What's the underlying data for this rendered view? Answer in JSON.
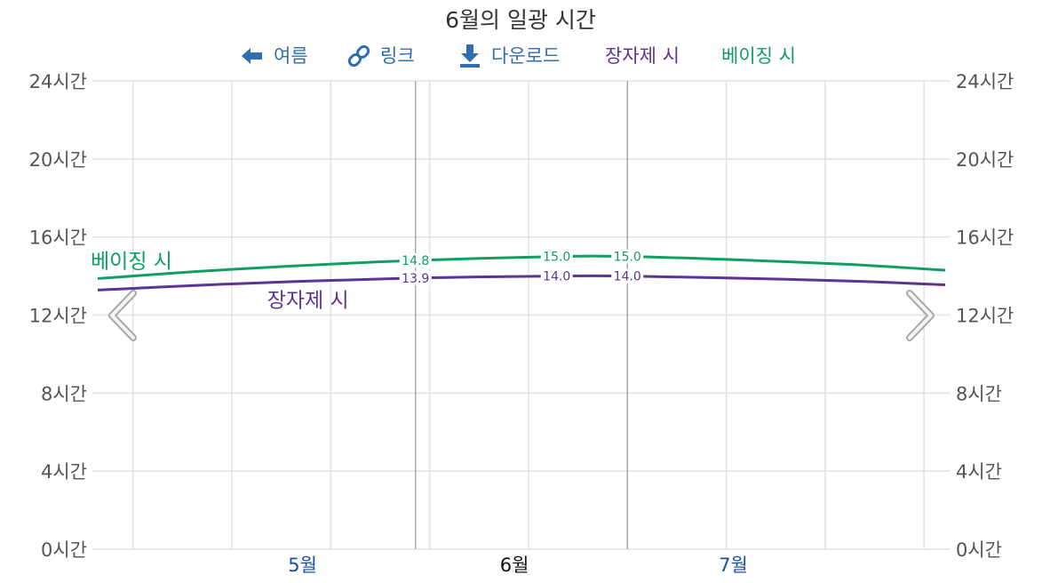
{
  "title": "6월의 일광 시간",
  "toolbar": {
    "back_label": "여름",
    "link_label": "링크",
    "download_label": "다운로드",
    "legend_jangja": "장자제 시",
    "legend_beijing": "베이징 시",
    "back_icon": "arrow-left-icon",
    "link_icon": "link-icon",
    "download_icon": "download-icon"
  },
  "nav": {
    "prev_icon": "chevron-left-icon",
    "next_icon": "chevron-right-icon"
  },
  "colors": {
    "jangja": "#5b3591",
    "beijing": "#0e9f62",
    "link": "#2f6fb0",
    "month_link": "#1a4fa0",
    "grid": "#e3e3e3",
    "boundary": "#999999"
  },
  "chart_data": {
    "type": "line",
    "title": "6월의 일광 시간",
    "ylim": [
      0,
      24
    ],
    "y_ticks": [
      {
        "value": 0,
        "label": "0시간"
      },
      {
        "value": 4,
        "label": "4시간"
      },
      {
        "value": 8,
        "label": "8시간"
      },
      {
        "value": 12,
        "label": "12시간"
      },
      {
        "value": 16,
        "label": "16시간"
      },
      {
        "value": 20,
        "label": "20시간"
      },
      {
        "value": 24,
        "label": "24시간"
      }
    ],
    "xlim": [
      "2024-04-17",
      "2024-08-15"
    ],
    "week_gridlines": [
      "2024-04-22",
      "2024-05-06",
      "2024-05-20",
      "2024-06-03",
      "2024-06-17",
      "2024-07-01",
      "2024-07-15",
      "2024-07-29",
      "2024-08-12"
    ],
    "month_boundaries": [
      "2024-06-01",
      "2024-07-01"
    ],
    "months": [
      {
        "label": "5월",
        "date": "2024-05-16",
        "active": false
      },
      {
        "label": "6월",
        "date": "2024-06-15",
        "active": true
      },
      {
        "label": "7월",
        "date": "2024-07-16",
        "active": false
      }
    ],
    "grid": true,
    "series": [
      {
        "name": "베이징 시",
        "color_key": "beijing",
        "points": [
          {
            "x": "2024-04-17",
            "y": 13.87
          },
          {
            "x": "2024-05-01",
            "y": 14.23
          },
          {
            "x": "2024-05-15",
            "y": 14.52
          },
          {
            "x": "2024-06-01",
            "y": 14.8
          },
          {
            "x": "2024-06-21",
            "y": 15.0
          },
          {
            "x": "2024-07-01",
            "y": 15.0
          },
          {
            "x": "2024-07-15",
            "y": 14.85
          },
          {
            "x": "2024-08-01",
            "y": 14.6
          },
          {
            "x": "2024-08-15",
            "y": 14.3
          }
        ],
        "labels": [
          {
            "x": "2024-06-01",
            "text": "14.8"
          },
          {
            "x": "2024-06-21",
            "text": "15.0"
          },
          {
            "x": "2024-07-01",
            "text": "15.0"
          }
        ],
        "series_label_x": "2024-04-17"
      },
      {
        "name": "장자제 시",
        "color_key": "jangja",
        "points": [
          {
            "x": "2024-04-17",
            "y": 13.28
          },
          {
            "x": "2024-05-01",
            "y": 13.52
          },
          {
            "x": "2024-05-15",
            "y": 13.72
          },
          {
            "x": "2024-06-01",
            "y": 13.9
          },
          {
            "x": "2024-06-21",
            "y": 14.0
          },
          {
            "x": "2024-07-01",
            "y": 14.0
          },
          {
            "x": "2024-07-15",
            "y": 13.9
          },
          {
            "x": "2024-08-01",
            "y": 13.75
          },
          {
            "x": "2024-08-15",
            "y": 13.55
          }
        ],
        "labels": [
          {
            "x": "2024-06-01",
            "text": "13.9"
          },
          {
            "x": "2024-06-21",
            "text": "14.0"
          },
          {
            "x": "2024-07-01",
            "text": "14.0"
          }
        ],
        "series_label_x": "2024-05-12"
      }
    ]
  }
}
